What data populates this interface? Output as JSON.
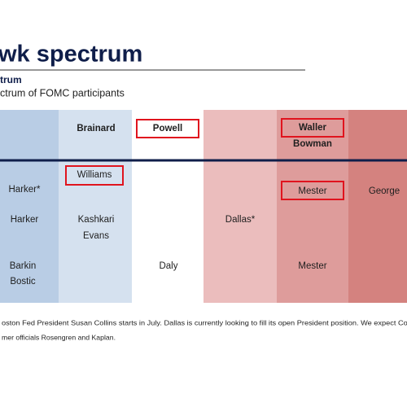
{
  "header": {
    "title": "wk spectrum",
    "subtitle": "trum",
    "description": "ctrum of FOMC participants"
  },
  "leadership": [
    "Brainard",
    "Powell",
    "Waller",
    "Bowman"
  ],
  "rows": [
    [
      "Harker*",
      "Williams",
      "Mester",
      "George"
    ],
    [
      "Harker",
      "Kashkari",
      "Evans",
      "Dallas*"
    ],
    [
      "Barkin",
      "Bostic",
      "Daly",
      "Mester"
    ]
  ],
  "footnote": [
    "oston Fed President  Susan  Collins starts in July. Dallas is currently looking to fill its open President  position. We expect Collin",
    "mer officials Rosengren and Kaplan."
  ]
}
